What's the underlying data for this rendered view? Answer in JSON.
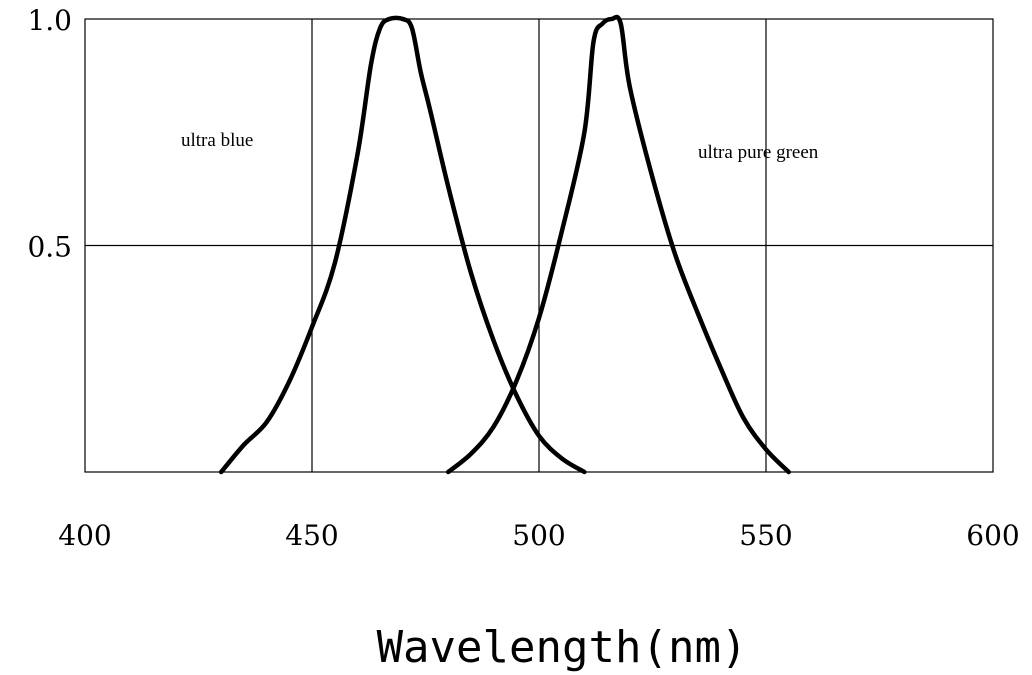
{
  "chart_data": {
    "type": "line",
    "title": "",
    "xlabel": "Wavelength(nm)",
    "ylabel": "",
    "xlim": [
      400,
      600
    ],
    "ylim": [
      0,
      1.0
    ],
    "x_ticks": [
      400,
      450,
      500,
      550,
      600
    ],
    "x_tick_labels": [
      "400",
      "450",
      "500",
      "550",
      "600"
    ],
    "y_ticks": [
      0.5,
      1.0
    ],
    "y_tick_labels": [
      "0.5",
      "1.0"
    ],
    "grid": true,
    "series": [
      {
        "name": "ultra blue",
        "x": [
          430,
          435,
          440,
          445,
          450,
          455,
          460,
          463,
          465,
          467,
          470,
          472,
          474,
          476,
          480,
          485,
          490,
          495,
          500,
          505,
          510
        ],
        "y": [
          0.0,
          0.06,
          0.11,
          0.2,
          0.32,
          0.46,
          0.7,
          0.9,
          0.98,
          1.0,
          1.0,
          0.98,
          0.88,
          0.8,
          0.63,
          0.44,
          0.29,
          0.17,
          0.08,
          0.03,
          0.0
        ]
      },
      {
        "name": "ultra pure green",
        "x": [
          480,
          485,
          490,
          495,
          500,
          505,
          510,
          512,
          514,
          516,
          518,
          520,
          525,
          530,
          535,
          540,
          545,
          550,
          555
        ],
        "y": [
          0.0,
          0.04,
          0.1,
          0.2,
          0.34,
          0.53,
          0.75,
          0.95,
          0.99,
          1.0,
          0.99,
          0.85,
          0.65,
          0.48,
          0.35,
          0.23,
          0.12,
          0.05,
          0.0
        ]
      }
    ],
    "annotations": [
      "ultra blue",
      "ultra pure green"
    ]
  }
}
